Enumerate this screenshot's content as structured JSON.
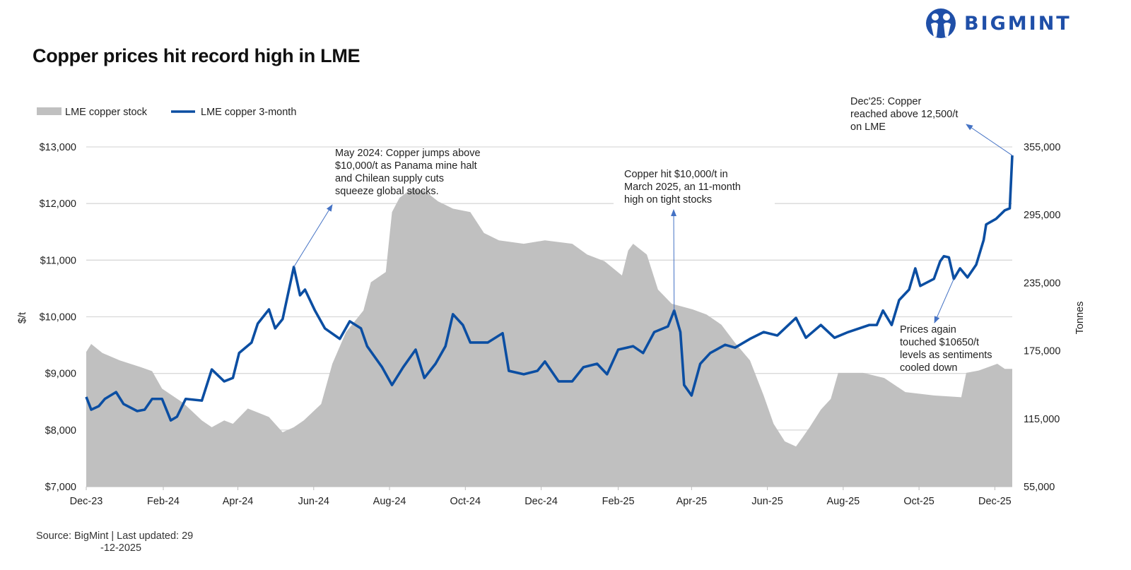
{
  "title": "Copper prices hit record high in LME",
  "logo": {
    "text": "BIGMINT",
    "color": "#1f4fa8"
  },
  "source": {
    "line1": "Source: BigMint | Last updated: 29",
    "line2": "-12-2025"
  },
  "chart_data": {
    "type": "line+area",
    "title": "Copper prices hit record high in LME",
    "ylabel": "$/t",
    "y2label": "Tonnes",
    "xlim": [
      "2023-12-01",
      "2025-12-15"
    ],
    "ylim": [
      7000,
      13000
    ],
    "y2lim": [
      55000,
      355000
    ],
    "yticks": [
      "$7,000",
      "$8,000",
      "$9,000",
      "$10,000",
      "$11,000",
      "$12,000",
      "$13,000"
    ],
    "y2ticks": [
      "55,000",
      "115,000",
      "175,000",
      "235,000",
      "295,000",
      "355,000"
    ],
    "xticks": [
      "Dec-23",
      "Feb-24",
      "Apr-24",
      "Jun-24",
      "Aug-24",
      "Oct-24",
      "Dec-24",
      "Feb-25",
      "Apr-25",
      "Jun-25",
      "Aug-25",
      "Oct-25",
      "Dec-25"
    ],
    "grid": "horizontal",
    "legend": "top-left",
    "series": [
      {
        "name": "LME copper stock",
        "type": "area",
        "axis": "right",
        "color": "#c0c0c0",
        "x": [
          "2023-12-01",
          "2023-12-05",
          "2023-12-14",
          "2023-12-28",
          "2024-01-14",
          "2024-01-23",
          "2024-01-31",
          "2024-02-17",
          "2024-03-03",
          "2024-03-11",
          "2024-03-21",
          "2024-03-28",
          "2024-04-09",
          "2024-04-26",
          "2024-05-07",
          "2024-05-16",
          "2024-05-24",
          "2024-06-07",
          "2024-06-16",
          "2024-06-27",
          "2024-07-11",
          "2024-07-17",
          "2024-07-29",
          "2024-08-03",
          "2024-08-09",
          "2024-08-18",
          "2024-08-29",
          "2024-09-09",
          "2024-09-21",
          "2024-10-05",
          "2024-10-16",
          "2024-10-28",
          "2024-11-17",
          "2024-12-04",
          "2024-12-26",
          "2025-01-07",
          "2025-01-21",
          "2025-02-04",
          "2025-02-09",
          "2025-02-13",
          "2025-02-24",
          "2025-03-05",
          "2025-03-16",
          "2025-04-02",
          "2025-04-13",
          "2025-04-25",
          "2025-05-06",
          "2025-05-18",
          "2025-05-29",
          "2025-06-06",
          "2025-06-15",
          "2025-06-24",
          "2025-06-29",
          "2025-07-05",
          "2025-07-14",
          "2025-07-22",
          "2025-07-28",
          "2025-08-17",
          "2025-09-03",
          "2025-09-20",
          "2025-10-13",
          "2025-11-04",
          "2025-11-08",
          "2025-11-18",
          "2025-12-03",
          "2025-12-09",
          "2025-12-15"
        ],
        "values": [
          174000,
          181000,
          173000,
          166500,
          160500,
          157000,
          141500,
          129000,
          113500,
          107500,
          113500,
          110500,
          124000,
          116500,
          103000,
          107500,
          113500,
          128000,
          163500,
          191500,
          210500,
          235500,
          244500,
          297500,
          310000,
          317500,
          316500,
          307000,
          300500,
          297500,
          279000,
          272500,
          269500,
          272500,
          269500,
          260000,
          254000,
          241500,
          263500,
          269500,
          260000,
          229000,
          216500,
          211500,
          207000,
          198000,
          182000,
          166500,
          135500,
          110500,
          95000,
          90500,
          98000,
          107500,
          123000,
          132500,
          155500,
          155500,
          151000,
          138500,
          135500,
          134000,
          155500,
          157500,
          163500,
          159000,
          159000
        ]
      },
      {
        "name": "LME copper 3-month",
        "type": "line",
        "axis": "left",
        "color": "#0b4ea2",
        "x": [
          "2023-12-01",
          "2023-12-05",
          "2023-12-11",
          "2023-12-16",
          "2023-12-25",
          "2023-12-31",
          "2024-01-11",
          "2024-01-17",
          "2024-01-23",
          "2024-01-31",
          "2024-02-07",
          "2024-02-12",
          "2024-02-19",
          "2024-03-03",
          "2024-03-11",
          "2024-03-21",
          "2024-03-28",
          "2024-04-02",
          "2024-04-12",
          "2024-04-17",
          "2024-04-26",
          "2024-05-01",
          "2024-05-07",
          "2024-05-16",
          "2024-05-21",
          "2024-05-25",
          "2024-06-02",
          "2024-06-10",
          "2024-06-22",
          "2024-06-30",
          "2024-07-09",
          "2024-07-14",
          "2024-07-26",
          "2024-08-03",
          "2024-08-12",
          "2024-08-22",
          "2024-08-29",
          "2024-09-07",
          "2024-09-15",
          "2024-09-21",
          "2024-09-29",
          "2024-10-05",
          "2024-10-19",
          "2024-10-31",
          "2024-11-05",
          "2024-11-17",
          "2024-11-28",
          "2024-12-04",
          "2024-12-15",
          "2024-12-26",
          "2025-01-04",
          "2025-01-15",
          "2025-01-23",
          "2025-02-01",
          "2025-02-13",
          "2025-02-21",
          "2025-03-02",
          "2025-03-13",
          "2025-03-18",
          "2025-03-23",
          "2025-03-26",
          "2025-04-01",
          "2025-04-08",
          "2025-04-16",
          "2025-04-28",
          "2025-05-06",
          "2025-05-18",
          "2025-05-29",
          "2025-06-09",
          "2025-06-24",
          "2025-07-02",
          "2025-07-14",
          "2025-07-25",
          "2025-08-05",
          "2025-08-22",
          "2025-08-28",
          "2025-09-02",
          "2025-09-09",
          "2025-09-15",
          "2025-09-23",
          "2025-09-28",
          "2025-10-02",
          "2025-10-13",
          "2025-10-18",
          "2025-10-21",
          "2025-10-25",
          "2025-10-29",
          "2025-11-03",
          "2025-11-09",
          "2025-11-16",
          "2025-11-22",
          "2025-11-24",
          "2025-12-02",
          "2025-12-09",
          "2025-12-13",
          "2025-12-15"
        ],
        "values": [
          8585,
          8360,
          8420,
          8550,
          8670,
          8460,
          8335,
          8360,
          8550,
          8550,
          8170,
          8235,
          8550,
          8520,
          9070,
          8860,
          8920,
          9360,
          9545,
          9880,
          10130,
          9795,
          9960,
          10880,
          10380,
          10480,
          10110,
          9795,
          9610,
          9920,
          9795,
          9480,
          9110,
          8795,
          9110,
          9420,
          8920,
          9170,
          9480,
          10045,
          9855,
          9545,
          9545,
          9710,
          9045,
          8985,
          9045,
          9210,
          8860,
          8860,
          9110,
          9170,
          8985,
          9420,
          9480,
          9360,
          9730,
          9830,
          10110,
          9730,
          8795,
          8610,
          9170,
          9360,
          9505,
          9455,
          9610,
          9730,
          9670,
          9980,
          9630,
          9855,
          9630,
          9730,
          9855,
          9855,
          10110,
          9855,
          10295,
          10480,
          10855,
          10545,
          10670,
          10980,
          11070,
          11050,
          10670,
          10855,
          10695,
          10920,
          11355,
          11630,
          11730,
          11880,
          11915,
          12850
        ]
      }
    ],
    "annotations": [
      {
        "lines": [
          "May 2024: Copper jumps above",
          "$10,000/t as Panama mine halt",
          "and Chilean supply cuts",
          "squeeze global stocks."
        ],
        "point": [
          "2024-05-16",
          10880
        ]
      },
      {
        "lines": [
          "Copper hit $10,000/t in",
          "March 2025, an 11-month",
          "high on tight stocks"
        ],
        "point": [
          "2025-03-18",
          10110
        ]
      },
      {
        "lines": [
          "Dec'25: Copper",
          "reached above 12,500/t",
          "on LME"
        ],
        "point": [
          "2025-12-15",
          12850
        ]
      },
      {
        "lines": [
          "Prices again",
          "touched $10650/t",
          "levels as sentiments",
          "cooled down"
        ],
        "point": [
          "2025-10-29",
          10670
        ]
      }
    ]
  }
}
